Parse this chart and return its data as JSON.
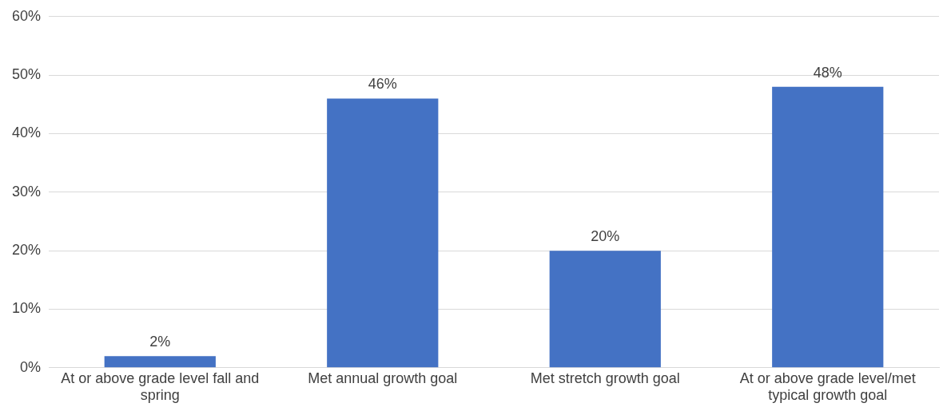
{
  "chart_data": {
    "type": "bar",
    "categories": [
      "At or above grade level fall and spring",
      "Met annual growth goal",
      "Met stretch growth goal",
      "At or above grade level/met typical growth goal"
    ],
    "values": [
      2,
      46,
      20,
      48
    ],
    "value_labels": [
      "2%",
      "46%",
      "20%",
      "48%"
    ],
    "color": "#4472c4",
    "ylim": [
      0,
      60
    ],
    "yticks": [
      {
        "value": 0,
        "label": "0%"
      },
      {
        "value": 10,
        "label": "10%"
      },
      {
        "value": 20,
        "label": "20%"
      },
      {
        "value": 30,
        "label": "30%"
      },
      {
        "value": 40,
        "label": "40%"
      },
      {
        "value": 50,
        "label": "50%"
      },
      {
        "value": 60,
        "label": "60%"
      }
    ],
    "grid": "y"
  }
}
